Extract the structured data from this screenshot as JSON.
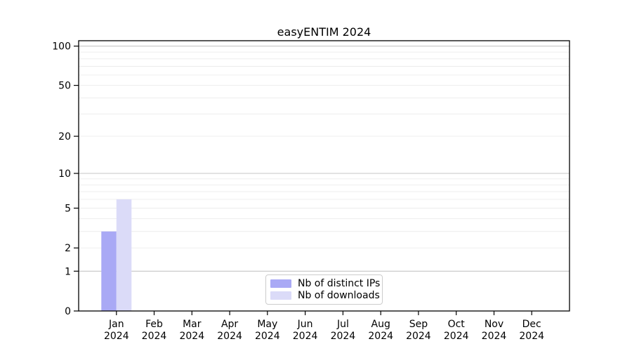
{
  "colors": {
    "background": "#ffffff",
    "axis": "#000000",
    "major_grid": "#c6c6c6",
    "minor_grid": "#ececec",
    "legend_border": "#cccccc",
    "distinct_ips_bar": "#a9a9f5",
    "downloads_bar": "#dbdbf8"
  },
  "chart_data": {
    "type": "bar",
    "title": "easyENTIM 2024",
    "xlabel": "",
    "ylabel": "",
    "yscale": "log1p",
    "grid": true,
    "legend_position": "lower center (inside plot)",
    "year": "2024",
    "months": [
      "Jan",
      "Feb",
      "Mar",
      "Apr",
      "May",
      "Jun",
      "Jul",
      "Aug",
      "Sep",
      "Oct",
      "Nov",
      "Dec"
    ],
    "categories": [
      "Jan 2024",
      "Feb 2024",
      "Mar 2024",
      "Apr 2024",
      "May 2024",
      "Jun 2024",
      "Jul 2024",
      "Aug 2024",
      "Sep 2024",
      "Oct 2024",
      "Nov 2024",
      "Dec 2024"
    ],
    "series": [
      {
        "name": "Nb of distinct IPs",
        "color": "#a9a9f5",
        "values": [
          3,
          0,
          0,
          0,
          0,
          0,
          0,
          0,
          0,
          0,
          0,
          0
        ]
      },
      {
        "name": "Nb of downloads",
        "color": "#dbdbf8",
        "values": [
          6,
          0,
          0,
          0,
          0,
          0,
          0,
          0,
          0,
          0,
          0,
          0
        ]
      }
    ],
    "yticks": [
      0,
      1,
      2,
      5,
      10,
      20,
      50,
      100
    ],
    "ylim": [
      0,
      110
    ],
    "gridlines": {
      "major": [
        1,
        10,
        100
      ],
      "minor": [
        2,
        3,
        4,
        5,
        6,
        7,
        8,
        9,
        20,
        30,
        40,
        50,
        60,
        70,
        80,
        90
      ]
    }
  }
}
